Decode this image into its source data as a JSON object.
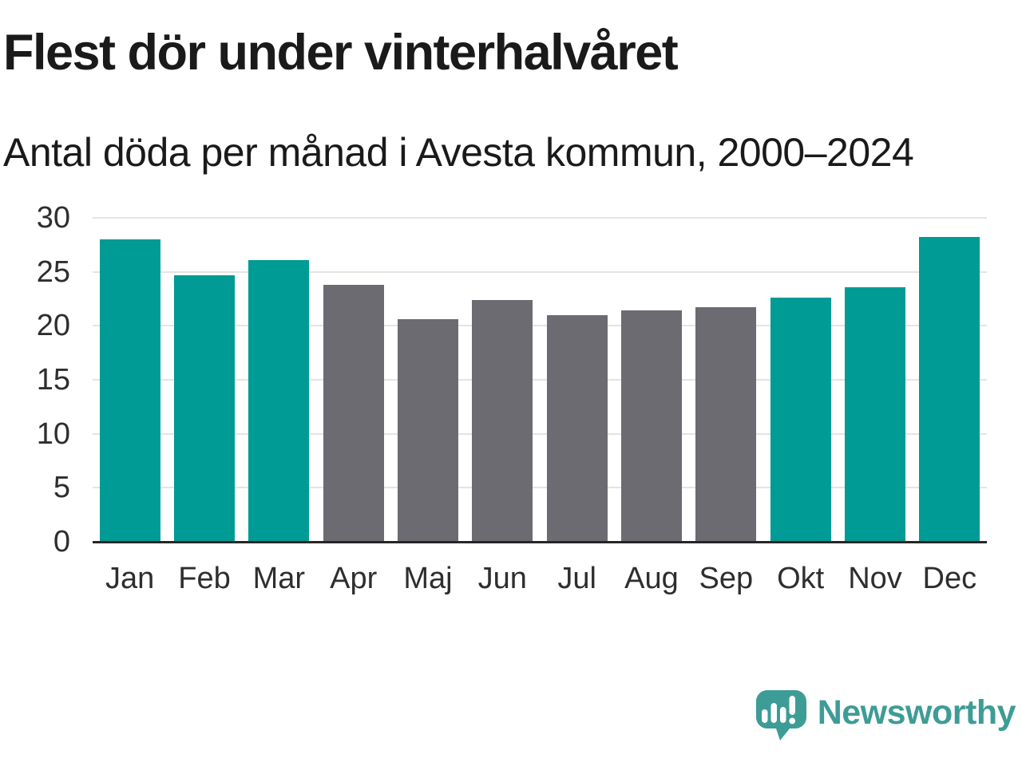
{
  "header": {
    "title": "Flest dör under vinterhalvåret",
    "subtitle": "Antal döda per månad i Avesta kommun, 2000–2024"
  },
  "chart_data": {
    "type": "bar",
    "title": "Flest dör under vinterhalvåret",
    "subtitle": "Antal döda per månad i Avesta kommun, 2000–2024",
    "categories": [
      "Jan",
      "Feb",
      "Mar",
      "Apr",
      "Maj",
      "Jun",
      "Jul",
      "Aug",
      "Sep",
      "Okt",
      "Nov",
      "Dec"
    ],
    "values": [
      28.0,
      24.7,
      26.1,
      23.8,
      20.6,
      22.4,
      21.0,
      21.4,
      21.7,
      22.6,
      23.6,
      28.2
    ],
    "bar_color_groups": [
      "winter",
      "winter",
      "winter",
      "summer",
      "summer",
      "summer",
      "summer",
      "summer",
      "summer",
      "winter",
      "winter",
      "winter"
    ],
    "color_map": {
      "winter": "#009B94",
      "summer": "#6C6B72"
    },
    "xlabel": "",
    "ylabel": "",
    "ylim": [
      0,
      30
    ],
    "yticks": [
      0,
      5,
      10,
      15,
      20,
      25,
      30
    ],
    "grid": true,
    "legend": false
  },
  "branding": {
    "wordmark": "Newsworthy",
    "logo_icon": "newsworthy-speech-bubble-bar-chart-icon"
  },
  "colors": {
    "winter_bar": "#009B94",
    "summer_bar": "#6C6B72",
    "logo": "#3E9C96",
    "gridline": "#E4E4E4",
    "axis_line": "#262626",
    "text": "#1A1A1A",
    "tick_label": "#2E2E2E",
    "background": "#FFFFFF"
  }
}
